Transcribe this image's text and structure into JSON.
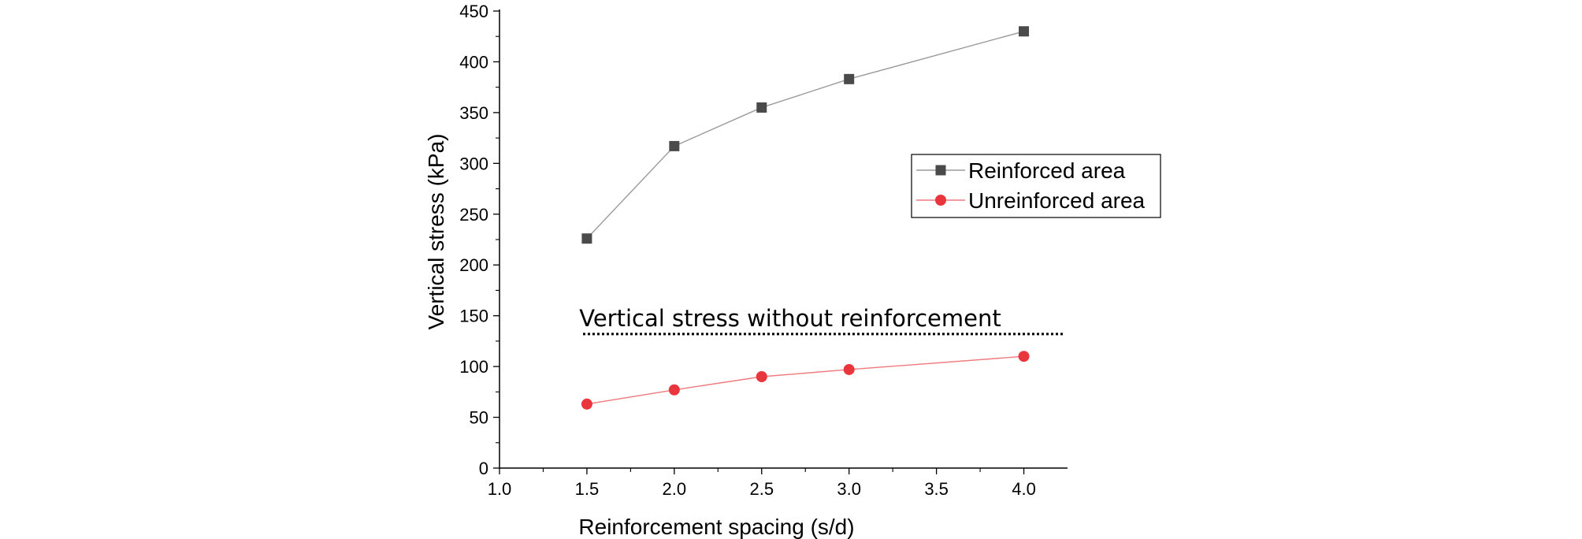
{
  "chart_data": {
    "type": "line",
    "xlabel": "Reinforcement spacing (s/d)",
    "ylabel": "Vertical stress (kPa)",
    "xlim": [
      1.0,
      4.25
    ],
    "ylim": [
      0,
      450
    ],
    "x_ticks": [
      "1.0",
      "1.5",
      "2.0",
      "2.5",
      "3.0",
      "3.5",
      "4.0"
    ],
    "y_ticks": [
      "0",
      "50",
      "100",
      "150",
      "200",
      "250",
      "300",
      "350",
      "400",
      "450"
    ],
    "grid": false,
    "legend_position": "right",
    "series": [
      {
        "name": "Reinforced area",
        "marker": "square",
        "color": "#4a4a4a",
        "x": [
          1.5,
          2.0,
          2.5,
          3.0,
          4.0
        ],
        "values": [
          226,
          317,
          355,
          383,
          430
        ]
      },
      {
        "name": "Unreinforced area",
        "marker": "circle",
        "color": "#e8363c",
        "x": [
          1.5,
          2.0,
          2.5,
          3.0,
          4.0
        ],
        "values": [
          63,
          77,
          90,
          97,
          110
        ]
      }
    ],
    "reference_line": {
      "y": 132,
      "label": "Vertical stress without reinforcement",
      "style": "dotted"
    }
  }
}
